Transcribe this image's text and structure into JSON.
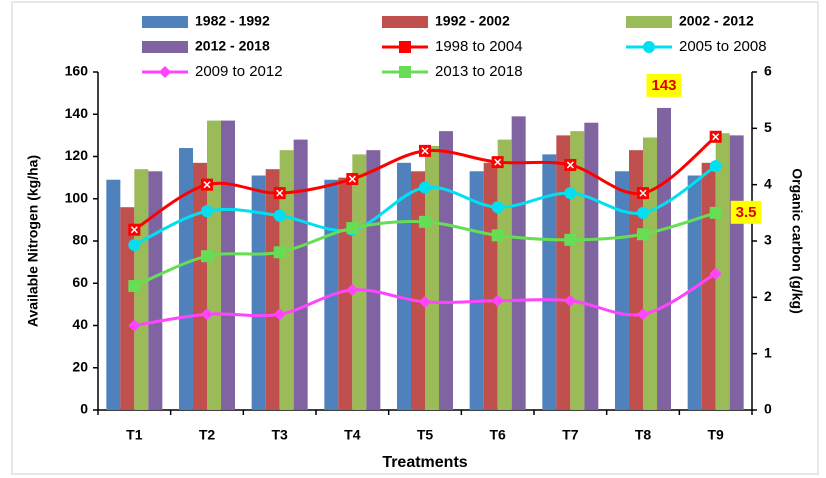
{
  "chart_data": {
    "type": "bar",
    "categories": [
      "T1",
      "T2",
      "T3",
      "T4",
      "T5",
      "T6",
      "T7",
      "T8",
      "T9"
    ],
    "xlabel": "Treatments",
    "ylabel": "Available Nitrogen (kg/ha)",
    "y2label": "Organic carbon (g/kg)",
    "ylim": [
      0,
      160
    ],
    "yticks": [
      0,
      20,
      40,
      60,
      80,
      100,
      120,
      140,
      160
    ],
    "y2lim": [
      0,
      6
    ],
    "y2ticks": [
      0,
      1,
      2,
      3,
      4,
      5,
      6
    ],
    "grid": false,
    "series": [
      {
        "name": "1982 - 1992",
        "type": "bar",
        "color": "#4f81bd",
        "values": [
          109,
          124,
          111,
          109,
          117,
          113,
          121,
          113,
          111
        ]
      },
      {
        "name": "1992 - 2002",
        "type": "bar",
        "color": "#c0504d",
        "values": [
          96,
          117,
          114,
          110,
          113,
          117,
          130,
          123,
          117
        ]
      },
      {
        "name": "2002 - 2012",
        "type": "bar",
        "color": "#9bbb59",
        "values": [
          114,
          137,
          123,
          121,
          125,
          128,
          132,
          129,
          131
        ]
      },
      {
        "name": "2012 - 2018",
        "type": "bar",
        "color": "#8064a2",
        "values": [
          113,
          137,
          128,
          123,
          132,
          139,
          136,
          143,
          130
        ],
        "value_labels": [
          null,
          null,
          null,
          null,
          null,
          null,
          null,
          "143",
          null
        ]
      },
      {
        "name": "1998 to 2004",
        "type": "line",
        "axis": "y2",
        "color": "#ff0000",
        "marker": "square-x",
        "values": [
          3.2,
          4.0,
          3.85,
          4.1,
          4.6,
          4.4,
          4.35,
          3.85,
          4.85
        ]
      },
      {
        "name": "2005 to 2008",
        "type": "line",
        "axis": "y2",
        "color": "#00e0f0",
        "marker": "circle",
        "values": [
          2.93,
          3.53,
          3.45,
          3.2,
          3.95,
          3.6,
          3.85,
          3.5,
          4.33
        ]
      },
      {
        "name": "2009 to 2012",
        "type": "line",
        "axis": "y2",
        "color": "#ff44ff",
        "marker": "diamond",
        "values": [
          1.5,
          1.7,
          1.7,
          2.13,
          1.92,
          1.94,
          1.94,
          1.7,
          2.42
        ]
      },
      {
        "name": "2013 to 2018",
        "type": "line",
        "axis": "y2",
        "color": "#66dd55",
        "marker": "square",
        "values": [
          2.2,
          2.73,
          2.8,
          3.23,
          3.34,
          3.1,
          3.02,
          3.12,
          3.5
        ],
        "value_labels": [
          null,
          null,
          null,
          null,
          null,
          null,
          null,
          null,
          "3.5"
        ]
      }
    ]
  }
}
